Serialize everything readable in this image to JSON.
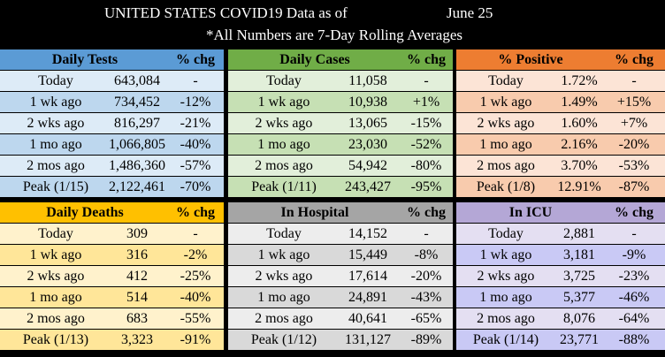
{
  "header": {
    "title": "UNITED STATES COVID19 Data as of",
    "date": "June 25",
    "subtitle": "*All Numbers are 7-Day Rolling Averages"
  },
  "colors": {
    "blue": {
      "head": "#5b9bd5",
      "dark": "#bdd7ee",
      "light": "#ddebf7"
    },
    "green": {
      "head": "#70ad47",
      "dark": "#c6e0b4",
      "light": "#e2efda"
    },
    "orange": {
      "head": "#ed7d31",
      "dark": "#f8cbad",
      "light": "#fce4d6"
    },
    "yellow": {
      "head": "#ffc000",
      "dark": "#ffe699",
      "light": "#fff2cc"
    },
    "gray": {
      "head": "#a5a5a5",
      "dark": "#d9d9d9",
      "light": "#ededed"
    },
    "purple": {
      "head": "#b4a7d6",
      "dark": "#c9c9f5",
      "light": "#e4dff2"
    }
  },
  "panels": [
    {
      "title": "Daily Tests",
      "chg_label": "% chg",
      "color": "blue",
      "rows": [
        [
          "Today",
          "643,084",
          "-"
        ],
        [
          "1 wk ago",
          "734,452",
          "-12%"
        ],
        [
          "2 wks ago",
          "816,297",
          "-21%"
        ],
        [
          "1 mo ago",
          "1,066,805",
          "-40%"
        ],
        [
          "2 mos ago",
          "1,486,360",
          "-57%"
        ],
        [
          "Peak (1/15)",
          "2,122,461",
          "-70%"
        ]
      ]
    },
    {
      "title": "Daily Cases",
      "chg_label": "% chg",
      "color": "green",
      "rows": [
        [
          "Today",
          "11,058",
          "-"
        ],
        [
          "1 wk ago",
          "10,938",
          "+1%"
        ],
        [
          "2 wks ago",
          "13,065",
          "-15%"
        ],
        [
          "1 mo ago",
          "23,030",
          "-52%"
        ],
        [
          "2 mos ago",
          "54,942",
          "-80%"
        ],
        [
          "Peak (1/11)",
          "243,427",
          "-95%"
        ]
      ]
    },
    {
      "title": "% Positive",
      "chg_label": "% chg",
      "color": "orange",
      "rows": [
        [
          "Today",
          "1.72%",
          "-"
        ],
        [
          "1 wk ago",
          "1.49%",
          "+15%"
        ],
        [
          "2 wks ago",
          "1.60%",
          "+7%"
        ],
        [
          "1 mo ago",
          "2.16%",
          "-20%"
        ],
        [
          "2 mos ago",
          "3.70%",
          "-53%"
        ],
        [
          "Peak (1/8)",
          "12.91%",
          "-87%"
        ]
      ]
    },
    {
      "title": "Daily Deaths",
      "chg_label": "% chg",
      "color": "yellow",
      "rows": [
        [
          "Today",
          "309",
          "-"
        ],
        [
          "1 wk ago",
          "316",
          "-2%"
        ],
        [
          "2 wks ago",
          "412",
          "-25%"
        ],
        [
          "1 mo ago",
          "514",
          "-40%"
        ],
        [
          "2 mos ago",
          "683",
          "-55%"
        ],
        [
          "Peak (1/13)",
          "3,323",
          "-91%"
        ]
      ]
    },
    {
      "title": "In Hospital",
      "chg_label": "% chg",
      "color": "gray",
      "rows": [
        [
          "Today",
          "14,152",
          "-"
        ],
        [
          "1 wk ago",
          "15,449",
          "-8%"
        ],
        [
          "2 wks ago",
          "17,614",
          "-20%"
        ],
        [
          "1 mo ago",
          "24,891",
          "-43%"
        ],
        [
          "2 mos ago",
          "40,641",
          "-65%"
        ],
        [
          "Peak (1/12)",
          "131,127",
          "-89%"
        ]
      ]
    },
    {
      "title": "In ICU",
      "chg_label": "% chg",
      "color": "purple",
      "rows": [
        [
          "Today",
          "2,881",
          "-"
        ],
        [
          "1 wk ago",
          "3,181",
          "-9%"
        ],
        [
          "2 wks ago",
          "3,725",
          "-23%"
        ],
        [
          "1 mo ago",
          "5,377",
          "-46%"
        ],
        [
          "2 mos ago",
          "8,076",
          "-64%"
        ],
        [
          "Peak (1/14)",
          "23,771",
          "-88%"
        ]
      ]
    }
  ]
}
